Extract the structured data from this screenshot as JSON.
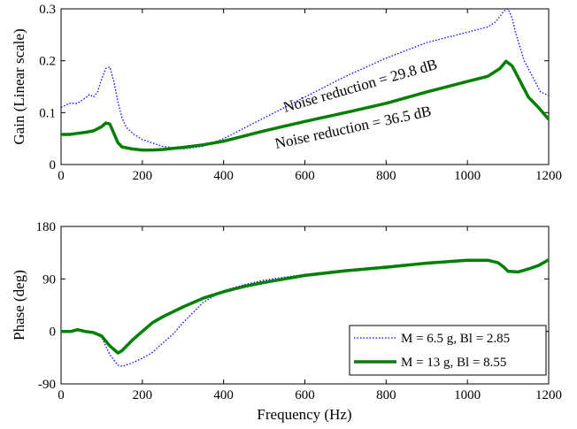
{
  "chart_data": [
    {
      "type": "line",
      "xlabel": "",
      "ylabel": "Gain (Linear scale)",
      "xlim": [
        0,
        1200
      ],
      "ylim": [
        0,
        0.3
      ],
      "xticks": [
        "0",
        "200",
        "400",
        "600",
        "800",
        "1000",
        "1200"
      ],
      "yticks": [
        "0",
        "0.1",
        "0.2",
        "0.3"
      ],
      "grid": false,
      "series": [
        {
          "name": "M = 6.5 g, Bl = 2.85",
          "color": "#0000ff",
          "style": "dotted",
          "x": [
            0,
            20,
            40,
            60,
            70,
            80,
            90,
            100,
            110,
            120,
            130,
            140,
            150,
            160,
            180,
            200,
            250,
            300,
            350,
            400,
            500,
            600,
            700,
            800,
            900,
            1000,
            1050,
            1070,
            1090,
            1100,
            1110,
            1120,
            1140,
            1160,
            1180,
            1200
          ],
          "y": [
            0.11,
            0.118,
            0.118,
            0.128,
            0.135,
            0.13,
            0.14,
            0.165,
            0.185,
            0.188,
            0.16,
            0.12,
            0.09,
            0.072,
            0.058,
            0.048,
            0.035,
            0.03,
            0.035,
            0.05,
            0.09,
            0.13,
            0.17,
            0.205,
            0.235,
            0.255,
            0.265,
            0.275,
            0.296,
            0.3,
            0.282,
            0.25,
            0.2,
            0.17,
            0.14,
            0.133
          ]
        },
        {
          "name": "M = 13 g, Bl = 8.55",
          "color": "#008000",
          "style": "solid",
          "x": [
            0,
            20,
            40,
            60,
            80,
            100,
            110,
            120,
            130,
            140,
            150,
            175,
            200,
            225,
            250,
            300,
            350,
            400,
            500,
            600,
            700,
            800,
            900,
            1000,
            1050,
            1080,
            1095,
            1110,
            1130,
            1150,
            1175,
            1200
          ],
          "y": [
            0.058,
            0.058,
            0.06,
            0.062,
            0.065,
            0.073,
            0.08,
            0.078,
            0.06,
            0.042,
            0.034,
            0.03,
            0.028,
            0.028,
            0.029,
            0.033,
            0.038,
            0.045,
            0.065,
            0.083,
            0.1,
            0.118,
            0.14,
            0.16,
            0.17,
            0.185,
            0.199,
            0.19,
            0.16,
            0.13,
            0.11,
            0.087
          ]
        }
      ],
      "annotations": [
        "Noise reduction = 29.8 dB",
        "Noise reduction = 36.5 dB"
      ]
    },
    {
      "type": "line",
      "xlabel": "Frequency (Hz)",
      "ylabel": "Phase (deg)",
      "xlim": [
        0,
        1200
      ],
      "ylim": [
        -90,
        180
      ],
      "xticks": [
        "0",
        "200",
        "400",
        "600",
        "800",
        "1000",
        "1200"
      ],
      "yticks": [
        "-90",
        "0",
        "90",
        "180"
      ],
      "grid": false,
      "legend": "bottom-right",
      "series": [
        {
          "name": "M = 6.5 g, Bl = 2.85",
          "color": "#0000ff",
          "style": "dotted",
          "x": [
            0,
            25,
            40,
            60,
            80,
            100,
            120,
            140,
            150,
            175,
            200,
            225,
            250,
            275,
            300,
            350,
            400,
            450,
            500,
            600,
            700,
            800,
            900,
            1000,
            1050,
            1075,
            1090,
            1100,
            1125,
            1150,
            1175,
            1200
          ],
          "y": [
            0,
            0,
            2,
            -2,
            -3,
            -10,
            -40,
            -58,
            -60,
            -54,
            -46,
            -36,
            -20,
            -5,
            15,
            50,
            70,
            80,
            88,
            98,
            105,
            112,
            118,
            123,
            123,
            118,
            110,
            105,
            103,
            108,
            115,
            120
          ]
        },
        {
          "name": "M = 13 g, Bl = 8.55",
          "color": "#008000",
          "style": "solid",
          "x": [
            0,
            25,
            40,
            60,
            80,
            100,
            120,
            140,
            150,
            175,
            200,
            225,
            250,
            300,
            350,
            400,
            450,
            500,
            600,
            700,
            800,
            900,
            1000,
            1050,
            1075,
            1090,
            1100,
            1125,
            1150,
            1175,
            1200
          ],
          "y": [
            0,
            0,
            3,
            0,
            -2,
            -8,
            -25,
            -37,
            -33,
            -15,
            0,
            15,
            25,
            42,
            57,
            68,
            77,
            84,
            96,
            104,
            110,
            117,
            122,
            122,
            118,
            110,
            103,
            102,
            107,
            113,
            123
          ]
        }
      ]
    }
  ]
}
